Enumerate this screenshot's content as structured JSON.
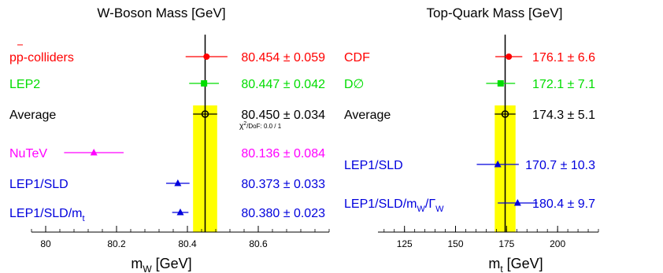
{
  "chart_data": [
    {
      "type": "scatter",
      "title": "W-Boson Mass  [GeV]",
      "xlabel": "m",
      "xlabel_sub": "W",
      "xlabel_unit": "[GeV]",
      "xlim": [
        79.96,
        80.8
      ],
      "xticks": [
        80,
        80.2,
        80.4,
        80.6
      ],
      "tick_labels": [
        "80",
        "80.2",
        "80.4",
        "80.6"
      ],
      "central_line": 80.45,
      "band": [
        80.416,
        80.484
      ],
      "band_color": "#ffff00",
      "annotation": {
        "pre": "χ",
        "sup": "2",
        "post": "/DoF: 0.0 / 1"
      },
      "points": [
        {
          "label": "pp-colliders",
          "value": 80.454,
          "error": 0.059,
          "value_text": "80.454 ± 0.059",
          "color": "#ff0000",
          "marker": "circle"
        },
        {
          "label": "LEP2",
          "value": 80.447,
          "error": 0.042,
          "value_text": "80.447 ± 0.042",
          "color": "#00dd00",
          "marker": "square"
        },
        {
          "label": "Average",
          "value": 80.45,
          "error": 0.034,
          "value_text": "80.450 ± 0.034",
          "color": "#000000",
          "marker": "open-circle"
        },
        {
          "label": "NuTeV",
          "value": 80.136,
          "error": 0.084,
          "value_text": "80.136 ± 0.084",
          "color": "#ff00ff",
          "marker": "triangle"
        },
        {
          "label": "LEP1/SLD",
          "value": 80.373,
          "error": 0.033,
          "value_text": "80.373 ± 0.033",
          "color": "#0000dd",
          "marker": "triangle"
        },
        {
          "label": "LEP1/SLD/m",
          "label_sub": "t",
          "value": 80.38,
          "error": 0.023,
          "value_text": "80.380 ± 0.023",
          "color": "#0000dd",
          "marker": "triangle"
        }
      ]
    },
    {
      "type": "scatter",
      "title": "Top-Quark Mass  [GeV]",
      "xlabel": "m",
      "xlabel_sub": "t",
      "xlabel_unit": "[GeV]",
      "xlim": [
        112,
        220
      ],
      "xticks": [
        125,
        150,
        175,
        200
      ],
      "tick_labels": [
        "125",
        "150",
        "175",
        "200"
      ],
      "central_line": 174.3,
      "band": [
        169.2,
        179.4
      ],
      "band_color": "#ffff00",
      "points": [
        {
          "label": "CDF",
          "value": 176.1,
          "error": 6.6,
          "value_text": "176.1 ± 6.6",
          "color": "#ff0000",
          "marker": "circle"
        },
        {
          "label": "D∅",
          "value": 172.1,
          "error": 7.1,
          "value_text": "172.1 ± 7.1",
          "color": "#00dd00",
          "marker": "square"
        },
        {
          "label": "Average",
          "value": 174.3,
          "error": 5.1,
          "value_text": "174.3 ± 5.1",
          "color": "#000000",
          "marker": "open-circle"
        },
        {
          "label": "LEP1/SLD",
          "value": 170.7,
          "error": 10.3,
          "value_text": "170.7 ± 10.3",
          "color": "#0000dd",
          "marker": "triangle"
        },
        {
          "label": "LEP1/SLD/m",
          "label_sub": "W",
          "label_mid": "/Γ",
          "label_sub2": "W",
          "value": 180.4,
          "error": 9.7,
          "value_text": "180.4 ± 9.7",
          "color": "#0000dd",
          "marker": "triangle"
        }
      ]
    }
  ]
}
